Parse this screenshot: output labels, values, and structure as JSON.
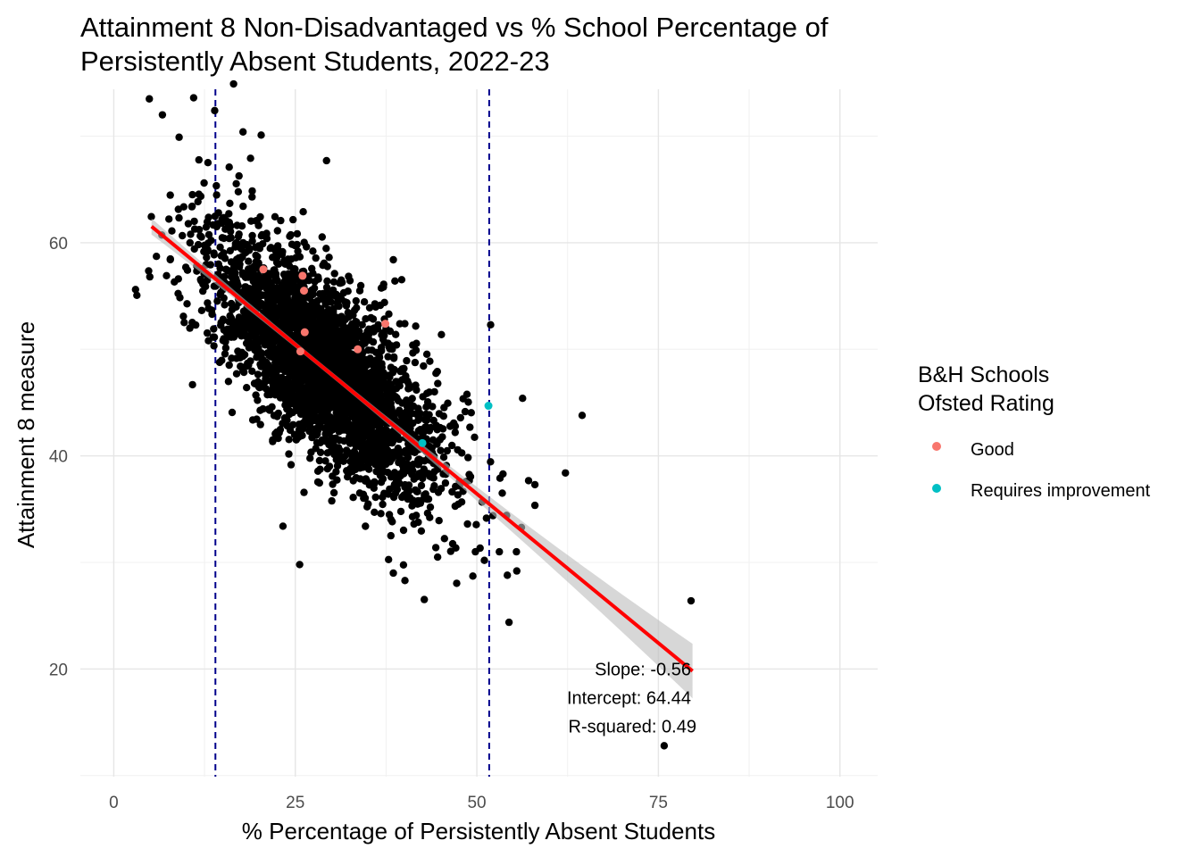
{
  "chart_data": {
    "type": "scatter",
    "title_lines": [
      "Attainment 8 Non-Disadvantaged vs % School Percentage of",
      "Persistently Absent Students, 2022-23"
    ],
    "xlabel": "% Percentage of Persistently Absent Students",
    "ylabel": "Attainment 8 measure",
    "xlim": [
      -4.6,
      105.2
    ],
    "ylim": [
      9.9,
      74.4
    ],
    "x_ticks": [
      0,
      25,
      50,
      75,
      100
    ],
    "y_ticks": [
      20,
      40,
      60
    ],
    "grid": true,
    "vlines": [
      {
        "x": 14,
        "color": "#00008b",
        "style": "dashed"
      },
      {
        "x": 51.7,
        "color": "#00008b",
        "style": "dashed"
      }
    ],
    "regression": {
      "slope": -0.56,
      "intercept": 64.44,
      "x_range": [
        5.2,
        79.7
      ],
      "color": "#ff0000"
    },
    "annotations": [
      "Slope: -0.56",
      "Intercept: 64.44",
      "R-squared: 0.49"
    ],
    "annotation_anchor": {
      "x": 79.5,
      "y": 19.5
    },
    "legend": {
      "title_lines": [
        "B&H Schools",
        "Ofsted Rating"
      ],
      "position": "right",
      "items": [
        {
          "label": "Good",
          "color": "#f8766d"
        },
        {
          "label": "Requires improvement",
          "color": "#00bfc4"
        }
      ]
    },
    "background_points": {
      "color": "#000000",
      "count_approx": 3000,
      "x_mean": 29,
      "x_sd": 8,
      "x_min": 3,
      "x_max": 58,
      "trend_slope": -0.56,
      "trend_intercept": 64.44,
      "residual_sd": 4.2
    },
    "outliers": [
      {
        "x": 4.9,
        "y": 73.5
      },
      {
        "x": 6.7,
        "y": 72
      },
      {
        "x": 11,
        "y": 73.6
      },
      {
        "x": 13.9,
        "y": 72.4
      },
      {
        "x": 16.5,
        "y": 74.9
      },
      {
        "x": 17.8,
        "y": 70.4
      },
      {
        "x": 20.3,
        "y": 70.1
      },
      {
        "x": 9,
        "y": 69.9
      },
      {
        "x": 29.3,
        "y": 67.7
      },
      {
        "x": 38.5,
        "y": 58.4
      },
      {
        "x": 51.9,
        "y": 52.3
      },
      {
        "x": 56.3,
        "y": 45.4
      },
      {
        "x": 64.5,
        "y": 43.8
      },
      {
        "x": 62.2,
        "y": 38.4
      },
      {
        "x": 55.5,
        "y": 29.2
      },
      {
        "x": 54.2,
        "y": 28.8
      },
      {
        "x": 53.1,
        "y": 31
      },
      {
        "x": 79.5,
        "y": 26.4
      },
      {
        "x": 75.8,
        "y": 12.8
      },
      {
        "x": 25.6,
        "y": 29.8
      },
      {
        "x": 40.1,
        "y": 28.3
      },
      {
        "x": 38.5,
        "y": 29
      },
      {
        "x": 23.3,
        "y": 33.4
      },
      {
        "x": 44.6,
        "y": 30.5
      },
      {
        "x": 49.8,
        "y": 31
      },
      {
        "x": 53.5,
        "y": 36.5
      },
      {
        "x": 53.6,
        "y": 38.3
      }
    ],
    "highlighted_points": [
      {
        "x": 20.6,
        "y": 57.5,
        "rating": "Good"
      },
      {
        "x": 26,
        "y": 56.9,
        "rating": "Good"
      },
      {
        "x": 26.2,
        "y": 55.5,
        "rating": "Good"
      },
      {
        "x": 26.3,
        "y": 51.6,
        "rating": "Good"
      },
      {
        "x": 25.7,
        "y": 49.8,
        "rating": "Good"
      },
      {
        "x": 33.6,
        "y": 50,
        "rating": "Good"
      },
      {
        "x": 37.4,
        "y": 52.4,
        "rating": "Good"
      },
      {
        "x": 51.6,
        "y": 44.7,
        "rating": "Requires improvement"
      },
      {
        "x": 42.5,
        "y": 41.2,
        "rating": "Requires improvement"
      }
    ]
  }
}
